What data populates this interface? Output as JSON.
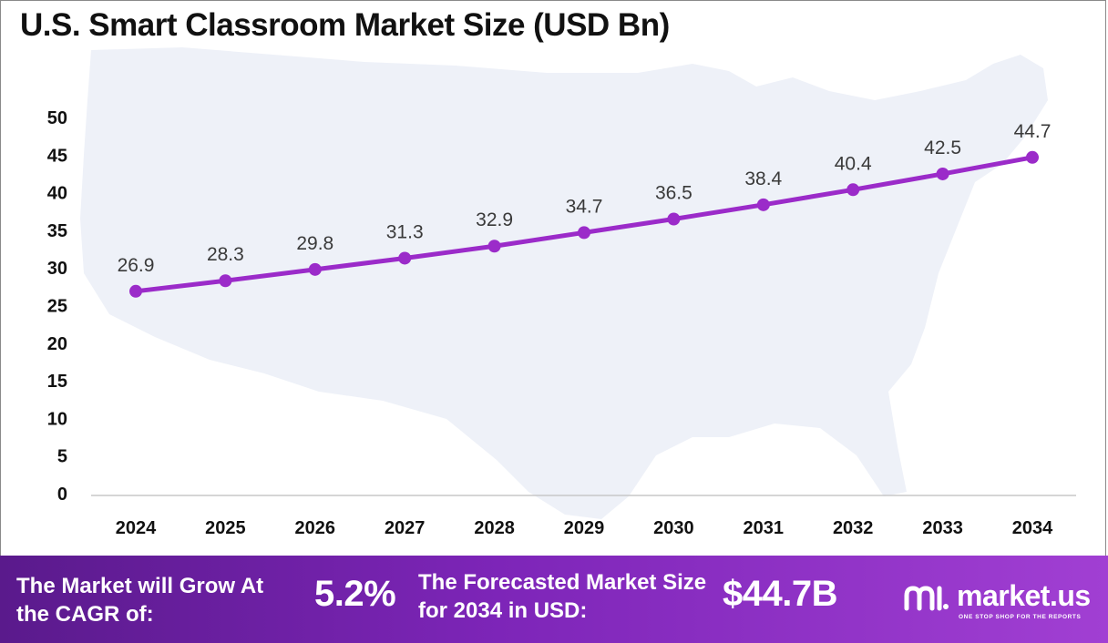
{
  "title": "U.S. Smart Classroom Market Size (USD Bn)",
  "chart_data": {
    "type": "line",
    "title": "U.S. Smart Classroom Market Size (USD Bn)",
    "categories": [
      "2024",
      "2025",
      "2026",
      "2027",
      "2028",
      "2029",
      "2030",
      "2031",
      "2032",
      "2033",
      "2034"
    ],
    "values": [
      26.9,
      28.3,
      29.8,
      31.3,
      32.9,
      34.7,
      36.5,
      38.4,
      40.4,
      42.5,
      44.7
    ],
    "data_labels": [
      "26.9",
      "28.3",
      "29.8",
      "31.3",
      "32.9",
      "34.7",
      "36.5",
      "38.4",
      "40.4",
      "42.5",
      "44.7"
    ],
    "ylim": [
      0,
      50
    ],
    "yticks": [
      "0",
      "5",
      "10",
      "15",
      "20",
      "25",
      "30",
      "35",
      "40",
      "45",
      "50"
    ],
    "grid": false,
    "line_color": "#9b2bc9",
    "background_map": "united-states-map"
  },
  "footer": {
    "cagr_label": "The Market will Grow At the CAGR of:",
    "cagr_value": "5.2%",
    "forecast_label": "The Forecasted Market Size for 2034 in USD:",
    "forecast_value": "$44.7B",
    "brand_name": "market.us",
    "brand_tagline": "ONE STOP SHOP FOR THE REPORTS",
    "brand_icon": "market-us-logo-icon",
    "gradient_colors": [
      "#5a1a8c",
      "#a13fd3"
    ]
  }
}
